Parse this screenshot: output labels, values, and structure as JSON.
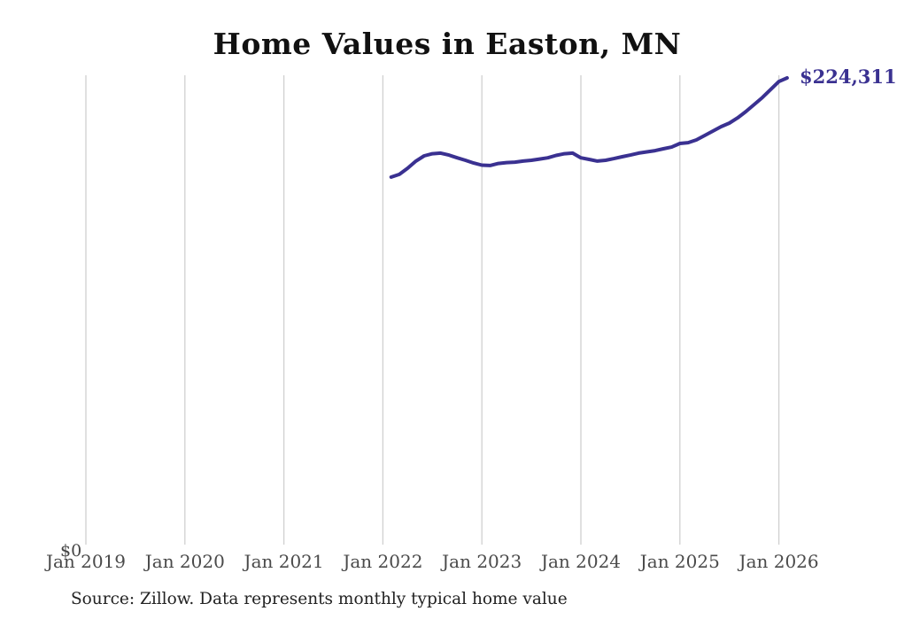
{
  "chart_data": {
    "type": "line",
    "title": "Home Values in Easton, MN",
    "source_note": "Source: Zillow. Data represents monthly typical home value",
    "y_zero_label": "$0",
    "latest_value_label": "$224,311",
    "line_color": "#3a3191",
    "gridline_color": "#d0d0d0",
    "x_tick_labels": [
      "Jan 2019",
      "Jan 2020",
      "Jan 2021",
      "Jan 2022",
      "Jan 2023",
      "Jan 2024",
      "Jan 2025",
      "Jan 2026"
    ],
    "xlabel": "",
    "ylabel": "",
    "ylim": [
      0,
      224311
    ],
    "x_range": [
      "Jan 2019",
      "Feb 2026"
    ],
    "legend": "none",
    "grid": "vertical-only",
    "months": [
      "2022-02",
      "2022-03",
      "2022-04",
      "2022-05",
      "2022-06",
      "2022-07",
      "2022-08",
      "2022-09",
      "2022-10",
      "2022-11",
      "2022-12",
      "2023-01",
      "2023-02",
      "2023-03",
      "2023-04",
      "2023-05",
      "2023-06",
      "2023-07",
      "2023-08",
      "2023-09",
      "2023-10",
      "2023-11",
      "2023-12",
      "2024-01",
      "2024-02",
      "2024-03",
      "2024-04",
      "2024-05",
      "2024-06",
      "2024-07",
      "2024-08",
      "2024-09",
      "2024-10",
      "2024-11",
      "2024-12",
      "2025-01",
      "2025-02",
      "2025-03",
      "2025-04",
      "2025-05",
      "2025-06",
      "2025-07",
      "2025-08",
      "2025-09",
      "2025-10",
      "2025-11",
      "2025-12",
      "2026-01",
      "2026-02"
    ],
    "series": [
      {
        "name": "Typical home value",
        "values": [
          177100,
          178400,
          181300,
          184700,
          187200,
          188200,
          188500,
          187600,
          186300,
          185100,
          183800,
          182800,
          182600,
          183600,
          184000,
          184200,
          184700,
          185100,
          185700,
          186300,
          187400,
          188200,
          188500,
          186300,
          185500,
          184700,
          185100,
          185900,
          186800,
          187600,
          188500,
          189100,
          189700,
          190600,
          191400,
          193100,
          193500,
          194800,
          196900,
          199000,
          201100,
          202800,
          205300,
          208300,
          211600,
          215000,
          218800,
          222600,
          224311
        ]
      }
    ]
  }
}
